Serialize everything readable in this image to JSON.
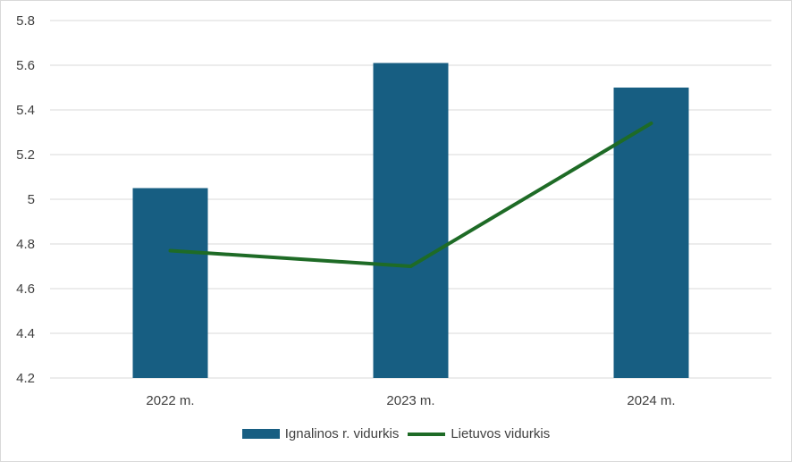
{
  "chart_data": {
    "type": "bar",
    "categories": [
      "2022 m.",
      "2023 m.",
      "2024 m."
    ],
    "series": [
      {
        "name": "Ignalinos r. vidurkis",
        "type": "bar",
        "color": "#175E82",
        "values": [
          5.05,
          5.61,
          5.5
        ]
      },
      {
        "name": "Lietuvos vidurkis",
        "type": "line",
        "color": "#1E6B26",
        "values": [
          4.77,
          4.7,
          5.34
        ]
      }
    ],
    "ylim": [
      4.2,
      5.8
    ],
    "yticks": [
      "4.2",
      "4.4",
      "4.6",
      "4.8",
      "5",
      "5.2",
      "5.4",
      "5.6",
      "5.8"
    ],
    "grid": true,
    "legend_position": "bottom"
  }
}
